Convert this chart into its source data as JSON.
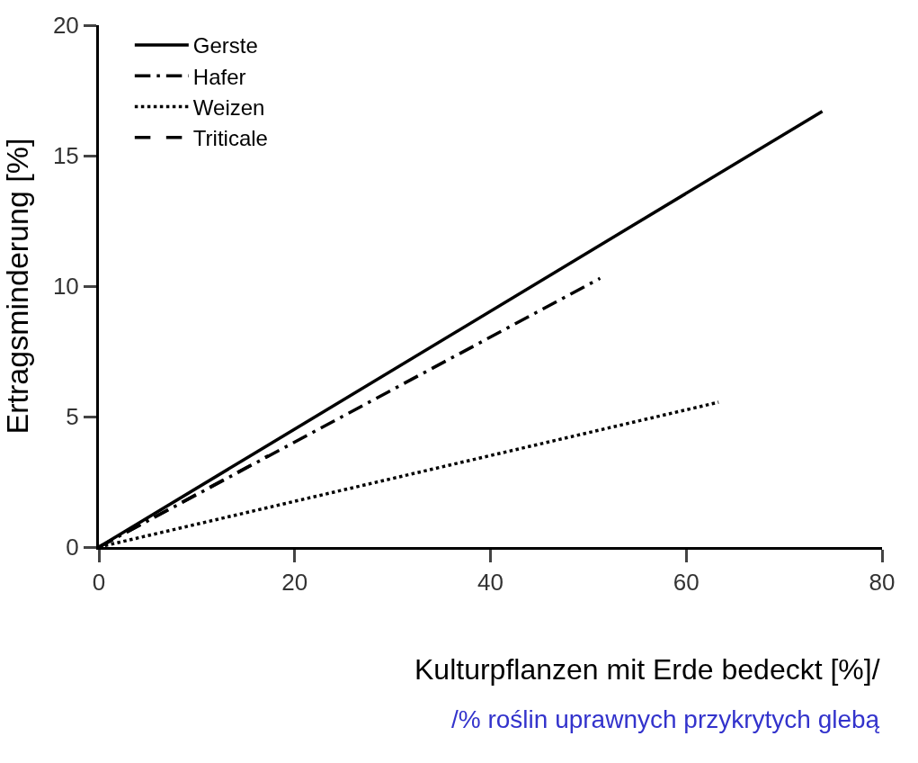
{
  "chart_data": {
    "type": "line",
    "xlabel": "Kulturpflanzen mit Erde bedeckt [%]/",
    "ylabel": "Ertragsminderung [%]",
    "annotations": [
      "/% roślin uprawnych przykrytych glebą"
    ],
    "series": [
      {
        "name": "Gerste",
        "color": "#000000",
        "x": [
          0,
          73.9
        ],
        "values": [
          0,
          16.7
        ],
        "line_style": "solid"
      },
      {
        "name": "Hafer",
        "color": "#000000",
        "x": [
          0,
          51.2
        ],
        "values": [
          0,
          10.3
        ],
        "line_style": "dashdot"
      },
      {
        "name": "Weizen",
        "color": "#000000",
        "x": [
          0,
          63.3
        ],
        "values": [
          0,
          5.55
        ],
        "line_style": "dotted"
      },
      {
        "name": "Triticale",
        "color": "#000000",
        "x": [
          0,
          17.3
        ],
        "values": [
          0,
          3.5
        ],
        "line_style": "dashed"
      }
    ],
    "xlim": [
      0,
      80
    ],
    "xticks": [
      0,
      20,
      40,
      60,
      80
    ],
    "ylim": [
      0,
      20
    ],
    "yticks": [
      0,
      5,
      10,
      15,
      20
    ],
    "legend": "top left",
    "marker": "none"
  }
}
